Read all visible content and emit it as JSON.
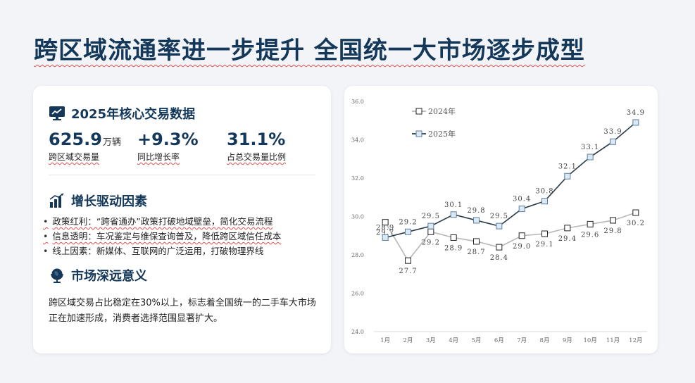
{
  "title": "跨区域流通率进一步提升 全国统一大市场逐步成型",
  "stats_section": {
    "title": "2025年核心交易数据",
    "items": [
      {
        "value": "625.9",
        "unit": "万辆",
        "label": "跨区域交易量"
      },
      {
        "value": "+9.3%",
        "unit": "",
        "label": "同比增长率"
      },
      {
        "value": "31.1%",
        "unit": "",
        "label": "占总交易量比例"
      }
    ]
  },
  "drivers_section": {
    "title": "增长驱动因素",
    "items": [
      "政策红利：“跨省通办”政策打破地域壁垒，简化交易流程",
      "信息透明：车况鉴定与维保查询普及，降低跨区域信任成本",
      "线上因素：新媒体、互联网的广泛运用，打破物理界线"
    ]
  },
  "significance_section": {
    "title": "市场深远意义",
    "text": "跨区域交易占比稳定在30%以上，标志着全国统一的二手车大市场正在加速形成，消费者选择范围显著扩大。"
  },
  "colors": {
    "title": "#14385a",
    "series_2024": "#b8b8b8",
    "series_2025": "#2b3a47",
    "marker_2025_fill": "#dce9f5",
    "marker_2025_stroke": "#5b7ea0"
  },
  "chart_data": {
    "type": "line",
    "categories": [
      "1月",
      "2月",
      "3月",
      "4月",
      "5月",
      "6月",
      "7月",
      "8月",
      "9月",
      "10月",
      "11月",
      "12月"
    ],
    "series": [
      {
        "name": "2024年",
        "values": [
          29.7,
          27.7,
          29.2,
          28.9,
          28.7,
          28.4,
          29.0,
          29.1,
          29.4,
          29.6,
          29.8,
          30.2
        ]
      },
      {
        "name": "2025年",
        "values": [
          28.9,
          29.2,
          29.5,
          30.1,
          29.8,
          29.5,
          30.4,
          30.8,
          32.1,
          33.1,
          33.9,
          34.9
        ]
      }
    ],
    "ylim": [
      24.0,
      36.0
    ],
    "yticks": [
      "24.0",
      "26.0",
      "28.0",
      "30.0",
      "32.0",
      "34.0",
      "36.0"
    ],
    "legend_position": "top-left",
    "grid": false,
    "data_labels": true
  }
}
